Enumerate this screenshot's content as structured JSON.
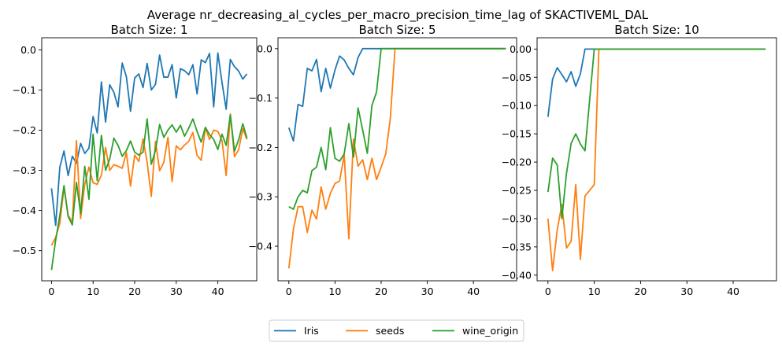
{
  "figure": {
    "suptitle": "Average nr_decreasing_al_cycles_per_macro_precision_time_lag of SKACTIVEML_DAL"
  },
  "colors": {
    "Iris": "#1f77b4",
    "seeds": "#ff7f0e",
    "wine_origin": "#2ca02c"
  },
  "legend": {
    "placement": "bottom-center",
    "entries": [
      "Iris",
      "seeds",
      "wine_origin"
    ]
  },
  "chart_data": [
    {
      "type": "line",
      "title": "Batch Size: 1",
      "xlim": [
        -2.35,
        49.35
      ],
      "ylim": [
        -0.575,
        0.03
      ],
      "xticks": [
        0,
        10,
        20,
        30,
        40
      ],
      "yticks": [
        -0.5,
        -0.4,
        -0.3,
        -0.2,
        -0.1,
        0.0
      ],
      "ytick_labels": [
        "−0.5",
        "−0.4",
        "−0.3",
        "−0.2",
        "−0.1",
        "0.0"
      ],
      "grid": false,
      "series": [
        {
          "name": "Iris",
          "x_start": 0,
          "values": [
            -0.345,
            -0.437,
            -0.292,
            -0.252,
            -0.313,
            -0.265,
            -0.282,
            -0.233,
            -0.258,
            -0.245,
            -0.166,
            -0.207,
            -0.08,
            -0.18,
            -0.087,
            -0.106,
            -0.142,
            -0.033,
            -0.067,
            -0.153,
            -0.07,
            -0.06,
            -0.094,
            -0.034,
            -0.1,
            -0.086,
            -0.013,
            -0.068,
            -0.068,
            -0.037,
            -0.12,
            -0.047,
            -0.052,
            -0.062,
            -0.037,
            -0.11,
            -0.025,
            -0.032,
            -0.009,
            -0.142,
            -0.008,
            -0.081,
            -0.148,
            -0.024,
            -0.042,
            -0.053,
            -0.073,
            -0.06
          ]
        },
        {
          "name": "seeds",
          "x_start": 0,
          "values": [
            -0.487,
            -0.467,
            -0.432,
            -0.343,
            -0.412,
            -0.428,
            -0.226,
            -0.42,
            -0.335,
            -0.292,
            -0.331,
            -0.335,
            -0.312,
            -0.243,
            -0.3,
            -0.286,
            -0.29,
            -0.295,
            -0.256,
            -0.339,
            -0.262,
            -0.278,
            -0.222,
            -0.28,
            -0.365,
            -0.228,
            -0.301,
            -0.28,
            -0.218,
            -0.328,
            -0.239,
            -0.249,
            -0.237,
            -0.228,
            -0.206,
            -0.263,
            -0.275,
            -0.195,
            -0.223,
            -0.2,
            -0.203,
            -0.226,
            -0.313,
            -0.16,
            -0.266,
            -0.249,
            -0.197,
            -0.223
          ]
        },
        {
          "name": "wine_origin",
          "x_start": 0,
          "values": [
            -0.548,
            -0.474,
            -0.412,
            -0.338,
            -0.415,
            -0.436,
            -0.33,
            -0.408,
            -0.29,
            -0.372,
            -0.21,
            -0.326,
            -0.213,
            -0.3,
            -0.272,
            -0.22,
            -0.238,
            -0.265,
            -0.251,
            -0.227,
            -0.255,
            -0.262,
            -0.255,
            -0.172,
            -0.285,
            -0.25,
            -0.186,
            -0.218,
            -0.2,
            -0.187,
            -0.205,
            -0.188,
            -0.215,
            -0.195,
            -0.172,
            -0.203,
            -0.23,
            -0.193,
            -0.211,
            -0.223,
            -0.248,
            -0.21,
            -0.238,
            -0.162,
            -0.252,
            -0.224,
            -0.184,
            -0.22
          ]
        }
      ]
    },
    {
      "type": "line",
      "title": "Batch Size: 5",
      "xlim": [
        -2.35,
        49.35
      ],
      "ylim": [
        -0.47,
        0.022
      ],
      "xticks": [
        0,
        10,
        20,
        30,
        40
      ],
      "yticks": [
        -0.4,
        -0.3,
        -0.2,
        -0.1,
        0.0
      ],
      "ytick_labels": [
        "−0.4",
        "−0.3",
        "−0.2",
        "−0.1",
        "0.0"
      ],
      "grid": false,
      "series": [
        {
          "name": "Iris",
          "x_start": 0,
          "values": [
            -0.16,
            -0.187,
            -0.113,
            -0.117,
            -0.04,
            -0.045,
            -0.022,
            -0.087,
            -0.04,
            -0.08,
            -0.043,
            -0.015,
            -0.023,
            -0.04,
            -0.053,
            -0.018,
            0,
            0,
            0,
            0,
            0,
            0,
            0,
            0,
            0,
            0,
            0,
            0,
            0,
            0,
            0,
            0,
            0,
            0,
            0,
            0,
            0,
            0,
            0,
            0,
            0,
            0,
            0,
            0,
            0,
            0,
            0,
            0
          ]
        },
        {
          "name": "seeds",
          "x_start": 0,
          "values": [
            -0.445,
            -0.365,
            -0.32,
            -0.32,
            -0.372,
            -0.327,
            -0.345,
            -0.28,
            -0.325,
            -0.293,
            -0.273,
            -0.268,
            -0.215,
            -0.385,
            -0.183,
            -0.238,
            -0.225,
            -0.265,
            -0.222,
            -0.265,
            -0.24,
            -0.213,
            -0.14,
            0,
            0,
            0,
            0,
            0,
            0,
            0,
            0,
            0,
            0,
            0,
            0,
            0,
            0,
            0,
            0,
            0,
            0,
            0,
            0,
            0,
            0,
            0,
            0,
            0
          ]
        },
        {
          "name": "wine_origin",
          "x_start": 0,
          "values": [
            -0.32,
            -0.325,
            -0.3,
            -0.287,
            -0.292,
            -0.247,
            -0.24,
            -0.2,
            -0.245,
            -0.16,
            -0.222,
            -0.228,
            -0.213,
            -0.152,
            -0.22,
            -0.12,
            -0.165,
            -0.212,
            -0.115,
            -0.088,
            0,
            0,
            0,
            0,
            0,
            0,
            0,
            0,
            0,
            0,
            0,
            0,
            0,
            0,
            0,
            0,
            0,
            0,
            0,
            0,
            0,
            0,
            0,
            0,
            0,
            0,
            0,
            0
          ]
        }
      ]
    },
    {
      "type": "line",
      "title": "Batch Size: 10",
      "xlim": [
        -2.35,
        49.35
      ],
      "ylim": [
        -0.41,
        0.02
      ],
      "xticks": [
        0,
        10,
        20,
        30,
        40
      ],
      "yticks": [
        -0.4,
        -0.35,
        -0.3,
        -0.25,
        -0.2,
        -0.15,
        -0.1,
        -0.05,
        0.0
      ],
      "ytick_labels": [
        "−0.40",
        "−0.35",
        "−0.30",
        "−0.25",
        "−0.20",
        "−0.15",
        "−0.10",
        "−0.05",
        "0.00"
      ],
      "grid": false,
      "series": [
        {
          "name": "Iris",
          "x_start": 0,
          "values": [
            -0.12,
            -0.053,
            -0.033,
            -0.045,
            -0.058,
            -0.04,
            -0.066,
            -0.044,
            0,
            0,
            0,
            0,
            0,
            0,
            0,
            0,
            0,
            0,
            0,
            0,
            0,
            0,
            0,
            0,
            0,
            0,
            0,
            0,
            0,
            0,
            0,
            0,
            0,
            0,
            0,
            0,
            0,
            0,
            0,
            0,
            0,
            0,
            0,
            0,
            0,
            0,
            0,
            0
          ]
        },
        {
          "name": "seeds",
          "x_start": 0,
          "values": [
            -0.3,
            -0.392,
            -0.32,
            -0.275,
            -0.352,
            -0.34,
            -0.24,
            -0.372,
            -0.26,
            -0.25,
            -0.24,
            0,
            0,
            0,
            0,
            0,
            0,
            0,
            0,
            0,
            0,
            0,
            0,
            0,
            0,
            0,
            0,
            0,
            0,
            0,
            0,
            0,
            0,
            0,
            0,
            0,
            0,
            0,
            0,
            0,
            0,
            0,
            0,
            0,
            0,
            0,
            0,
            0
          ]
        },
        {
          "name": "wine_origin",
          "x_start": 0,
          "values": [
            -0.253,
            -0.193,
            -0.205,
            -0.3,
            -0.22,
            -0.167,
            -0.15,
            -0.168,
            -0.18,
            -0.09,
            0,
            0,
            0,
            0,
            0,
            0,
            0,
            0,
            0,
            0,
            0,
            0,
            0,
            0,
            0,
            0,
            0,
            0,
            0,
            0,
            0,
            0,
            0,
            0,
            0,
            0,
            0,
            0,
            0,
            0,
            0,
            0,
            0,
            0,
            0,
            0,
            0,
            0
          ]
        }
      ]
    }
  ]
}
